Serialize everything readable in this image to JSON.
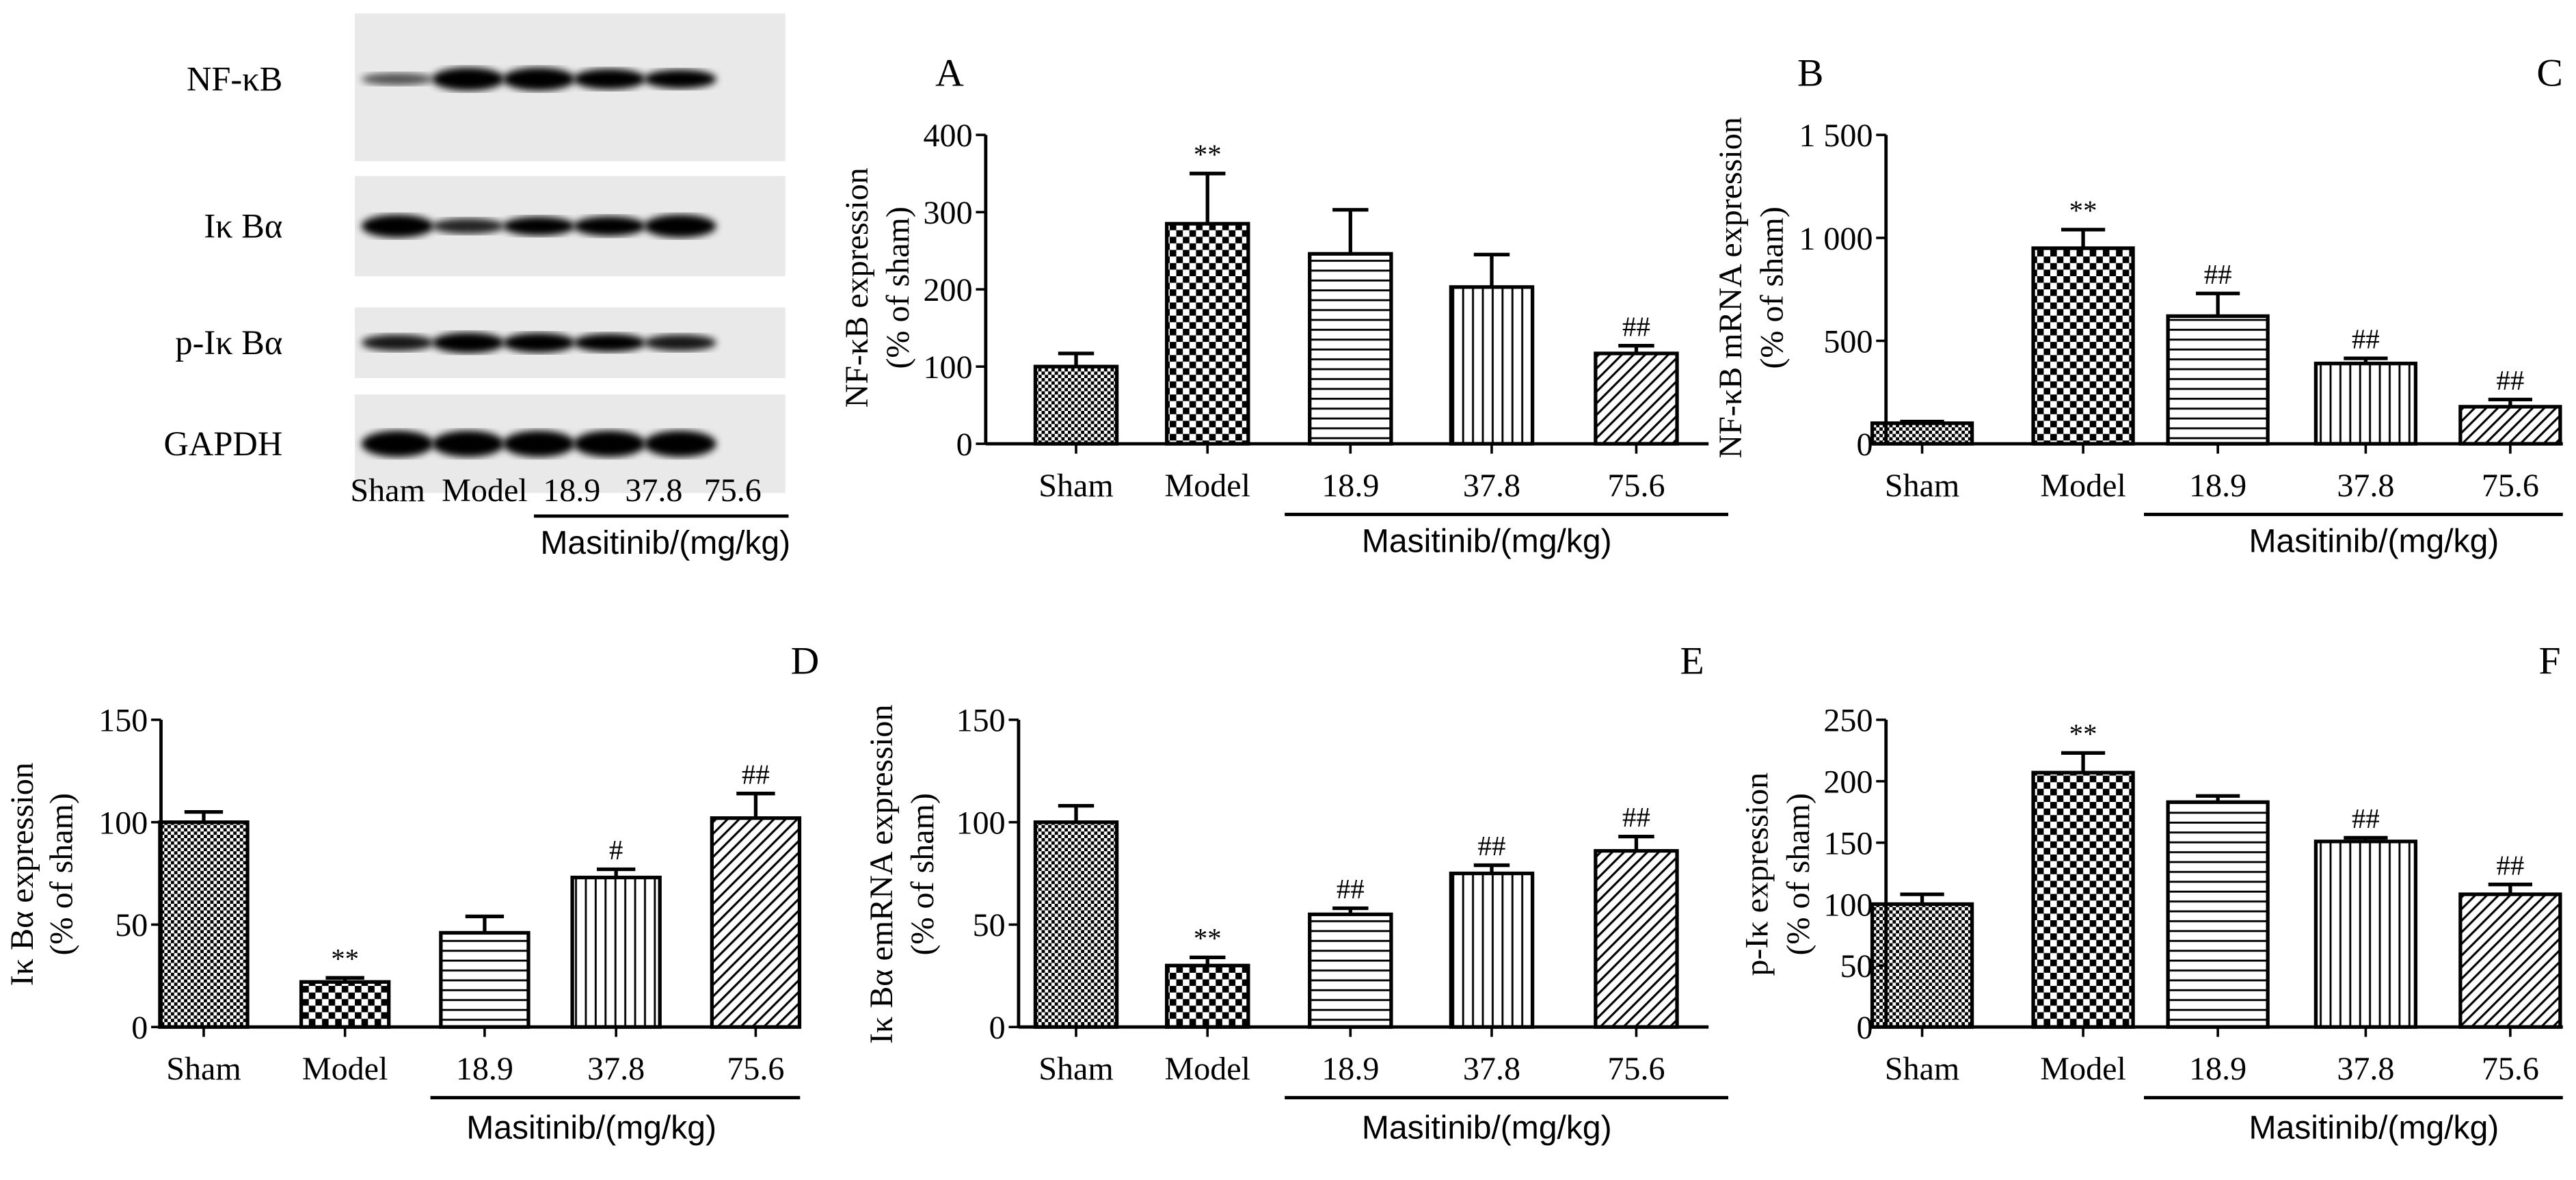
{
  "blot": {
    "panel_letter": "A",
    "rows": [
      "NF-κB",
      "Iκ Bα",
      "p-Iκ Bα",
      "GAPDH"
    ],
    "lanes": [
      "Sham",
      "Model",
      "18.9",
      "37.8",
      "75.6"
    ],
    "band_intensity": [
      [
        0.35,
        1.0,
        1.0,
        0.85,
        0.75
      ],
      [
        1.0,
        0.55,
        0.75,
        0.8,
        1.0
      ],
      [
        0.6,
        0.85,
        0.8,
        0.7,
        0.6
      ],
      [
        1.0,
        1.0,
        1.0,
        1.0,
        1.0
      ]
    ],
    "group_label": "Masitinib/(mg/kg)"
  },
  "chart_data": [
    {
      "panel": "B",
      "type": "bar",
      "ylabel": [
        "NF-κB expression",
        "(% of sham)"
      ],
      "ylim": [
        0,
        400
      ],
      "yticks": [
        "0",
        "100",
        "200",
        "300",
        "400"
      ],
      "ytick_values": [
        0,
        100,
        200,
        300,
        400
      ],
      "categories": [
        "Sham",
        "Model",
        "18.9",
        "37.8",
        "75.6"
      ],
      "values": [
        100,
        285,
        246,
        203,
        117
      ],
      "errors": [
        17,
        65,
        57,
        42,
        10
      ],
      "annotations": [
        "",
        "**",
        "",
        "",
        "##"
      ],
      "group_label": "Masitinib/(mg/kg)",
      "grid": false
    },
    {
      "panel": "C",
      "type": "bar",
      "ylabel": [
        "NF-κB mRNA expression",
        "(% of sham)"
      ],
      "ylim": [
        0,
        1500
      ],
      "yticks": [
        "0",
        "500",
        "1 000",
        "1 500"
      ],
      "ytick_values": [
        0,
        500,
        1000,
        1500
      ],
      "categories": [
        "Sham",
        "Model",
        "18.9",
        "37.8",
        "75.6"
      ],
      "values": [
        100,
        950,
        620,
        390,
        180
      ],
      "errors": [
        8,
        90,
        110,
        25,
        35
      ],
      "annotations": [
        "",
        "**",
        "##",
        "##",
        "##"
      ],
      "group_label": "Masitinib/(mg/kg)",
      "grid": false
    },
    {
      "panel": "D",
      "type": "bar",
      "ylabel": [
        "Iκ Bα expression",
        "(% of sham)"
      ],
      "ylim": [
        0,
        150
      ],
      "yticks": [
        "0",
        "50",
        "100",
        "150"
      ],
      "ytick_values": [
        0,
        50,
        100,
        150
      ],
      "categories": [
        "Sham",
        "Model",
        "18.9",
        "37.8",
        "75.6"
      ],
      "values": [
        100,
        22,
        46,
        73,
        102
      ],
      "errors": [
        5,
        2,
        8,
        4,
        12
      ],
      "annotations": [
        "",
        "**",
        "",
        "#",
        "##"
      ],
      "group_label": "Masitinib/(mg/kg)",
      "grid": false
    },
    {
      "panel": "E",
      "type": "bar",
      "ylabel": [
        "Iκ Bα emRNA expression",
        "(% of sham)"
      ],
      "ylim": [
        0,
        150
      ],
      "yticks": [
        "0",
        "50",
        "100",
        "150"
      ],
      "ytick_values": [
        0,
        50,
        100,
        150
      ],
      "categories": [
        "Sham",
        "Model",
        "18.9",
        "37.8",
        "75.6"
      ],
      "values": [
        100,
        30,
        55,
        75,
        86
      ],
      "errors": [
        8,
        4,
        3,
        4,
        7
      ],
      "annotations": [
        "",
        "**",
        "##",
        "##",
        "##"
      ],
      "group_label": "Masitinib/(mg/kg)",
      "grid": false
    },
    {
      "panel": "F",
      "type": "bar",
      "ylabel": [
        "p-Iκ expression",
        "(% of sham)"
      ],
      "ylim": [
        0,
        250
      ],
      "yticks": [
        "0",
        "50",
        "100",
        "150",
        "200",
        "250"
      ],
      "ytick_values": [
        0,
        50,
        100,
        150,
        200,
        250
      ],
      "categories": [
        "Sham",
        "Model",
        "18.9",
        "37.8",
        "75.6"
      ],
      "values": [
        100,
        207,
        183,
        151,
        108
      ],
      "errors": [
        8,
        16,
        5,
        3,
        8
      ],
      "annotations": [
        "",
        "**",
        "",
        "##",
        "##"
      ],
      "group_label": "Masitinib/(mg/kg)",
      "grid": false
    }
  ],
  "fill_patterns": [
    "fine-checker",
    "coarse-checker",
    "horizontal-lines",
    "vertical-lines",
    "diagonal-lines"
  ]
}
